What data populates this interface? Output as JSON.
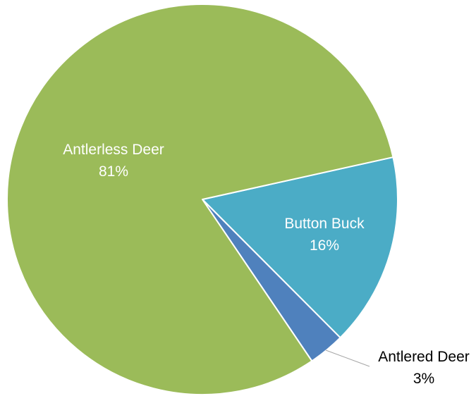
{
  "chart_data": {
    "type": "pie",
    "slices": [
      {
        "label": "Antlerless Deer",
        "value": 81,
        "pct_label": "81%",
        "color": "#9BBB59"
      },
      {
        "label": "Button Buck",
        "value": 16,
        "pct_label": "16%",
        "color": "#4BACC6"
      },
      {
        "label": "Antlered Deer",
        "value": 3,
        "pct_label": "3%",
        "color": "#4F81BD"
      }
    ],
    "legend": "none",
    "data_labels": "category and percentage"
  }
}
